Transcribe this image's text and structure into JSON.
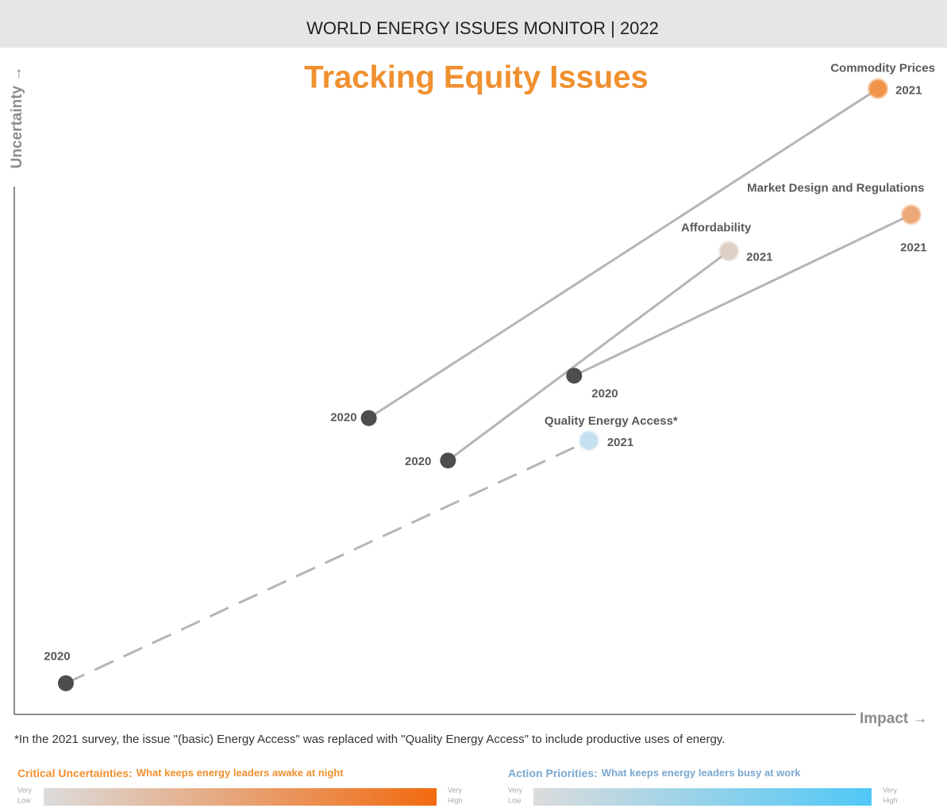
{
  "header": "WORLD ENERGY ISSUES MONITOR | 2022",
  "chart_data": {
    "type": "scatter",
    "title": "Tracking Equity Issues",
    "x_label": "Impact →",
    "y_label": "Uncertainty →",
    "xlim": [
      0,
      100
    ],
    "ylim": [
      0,
      100
    ],
    "series": [
      {
        "name": "Commodity Prices",
        "labels": [
          "2020",
          "2021"
        ],
        "x": [
          38.5,
          93.8
        ],
        "values": [
          44.7,
          94.4
        ],
        "colors": [
          "#4d4d4f",
          "#f0944a"
        ],
        "line_color": "#b4b5b9",
        "dashed": false
      },
      {
        "name": "Market Design and Regulations",
        "labels": [
          "2020",
          "2021"
        ],
        "x": [
          60.8,
          97.4
        ],
        "values": [
          51.1,
          75.4
        ],
        "colors": [
          "#4d4d4f",
          "#eea877"
        ],
        "line_color": "#b4b5b9",
        "dashed": false
      },
      {
        "name": "Affordability",
        "labels": [
          "2020",
          "2021"
        ],
        "x": [
          47.1,
          77.6
        ],
        "values": [
          38.3,
          69.9
        ],
        "colors": [
          "#4d4d4f",
          "#dccfc6"
        ],
        "line_color": "#b4b5b9",
        "dashed": false
      },
      {
        "name": "Quality Energy Access*",
        "labels": [
          "2020",
          "2021"
        ],
        "x": [
          5.6,
          62.4
        ],
        "values": [
          4.7,
          41.3
        ],
        "colors": [
          "#4d4d4f",
          "#c5e0ef"
        ],
        "line_color": "#b4b5b9",
        "dashed": true
      }
    ]
  },
  "note": "*In the 2021 survey, the issue \"(basic) Energy Access\" was replaced with \"Quality Energy Access\" to include productive uses of energy.",
  "legend": [
    {
      "title": "Critical Uncertainties:",
      "subtitle": "What keeps energy leaders awake at night",
      "low": [
        "Very",
        "Low"
      ],
      "high": [
        "Very",
        "High"
      ],
      "colors": [
        "#dcdcdc",
        "#f26a0f"
      ],
      "title_color": "#f0902f"
    },
    {
      "title": "Action Priorities:",
      "subtitle": "What keeps energy leaders busy at work",
      "low": [
        "Very",
        "Low"
      ],
      "high": [
        "Very",
        "High"
      ],
      "colors": [
        "#dcdcdc",
        "#4fc8f6"
      ],
      "title_color": "#7aa8cf"
    }
  ]
}
